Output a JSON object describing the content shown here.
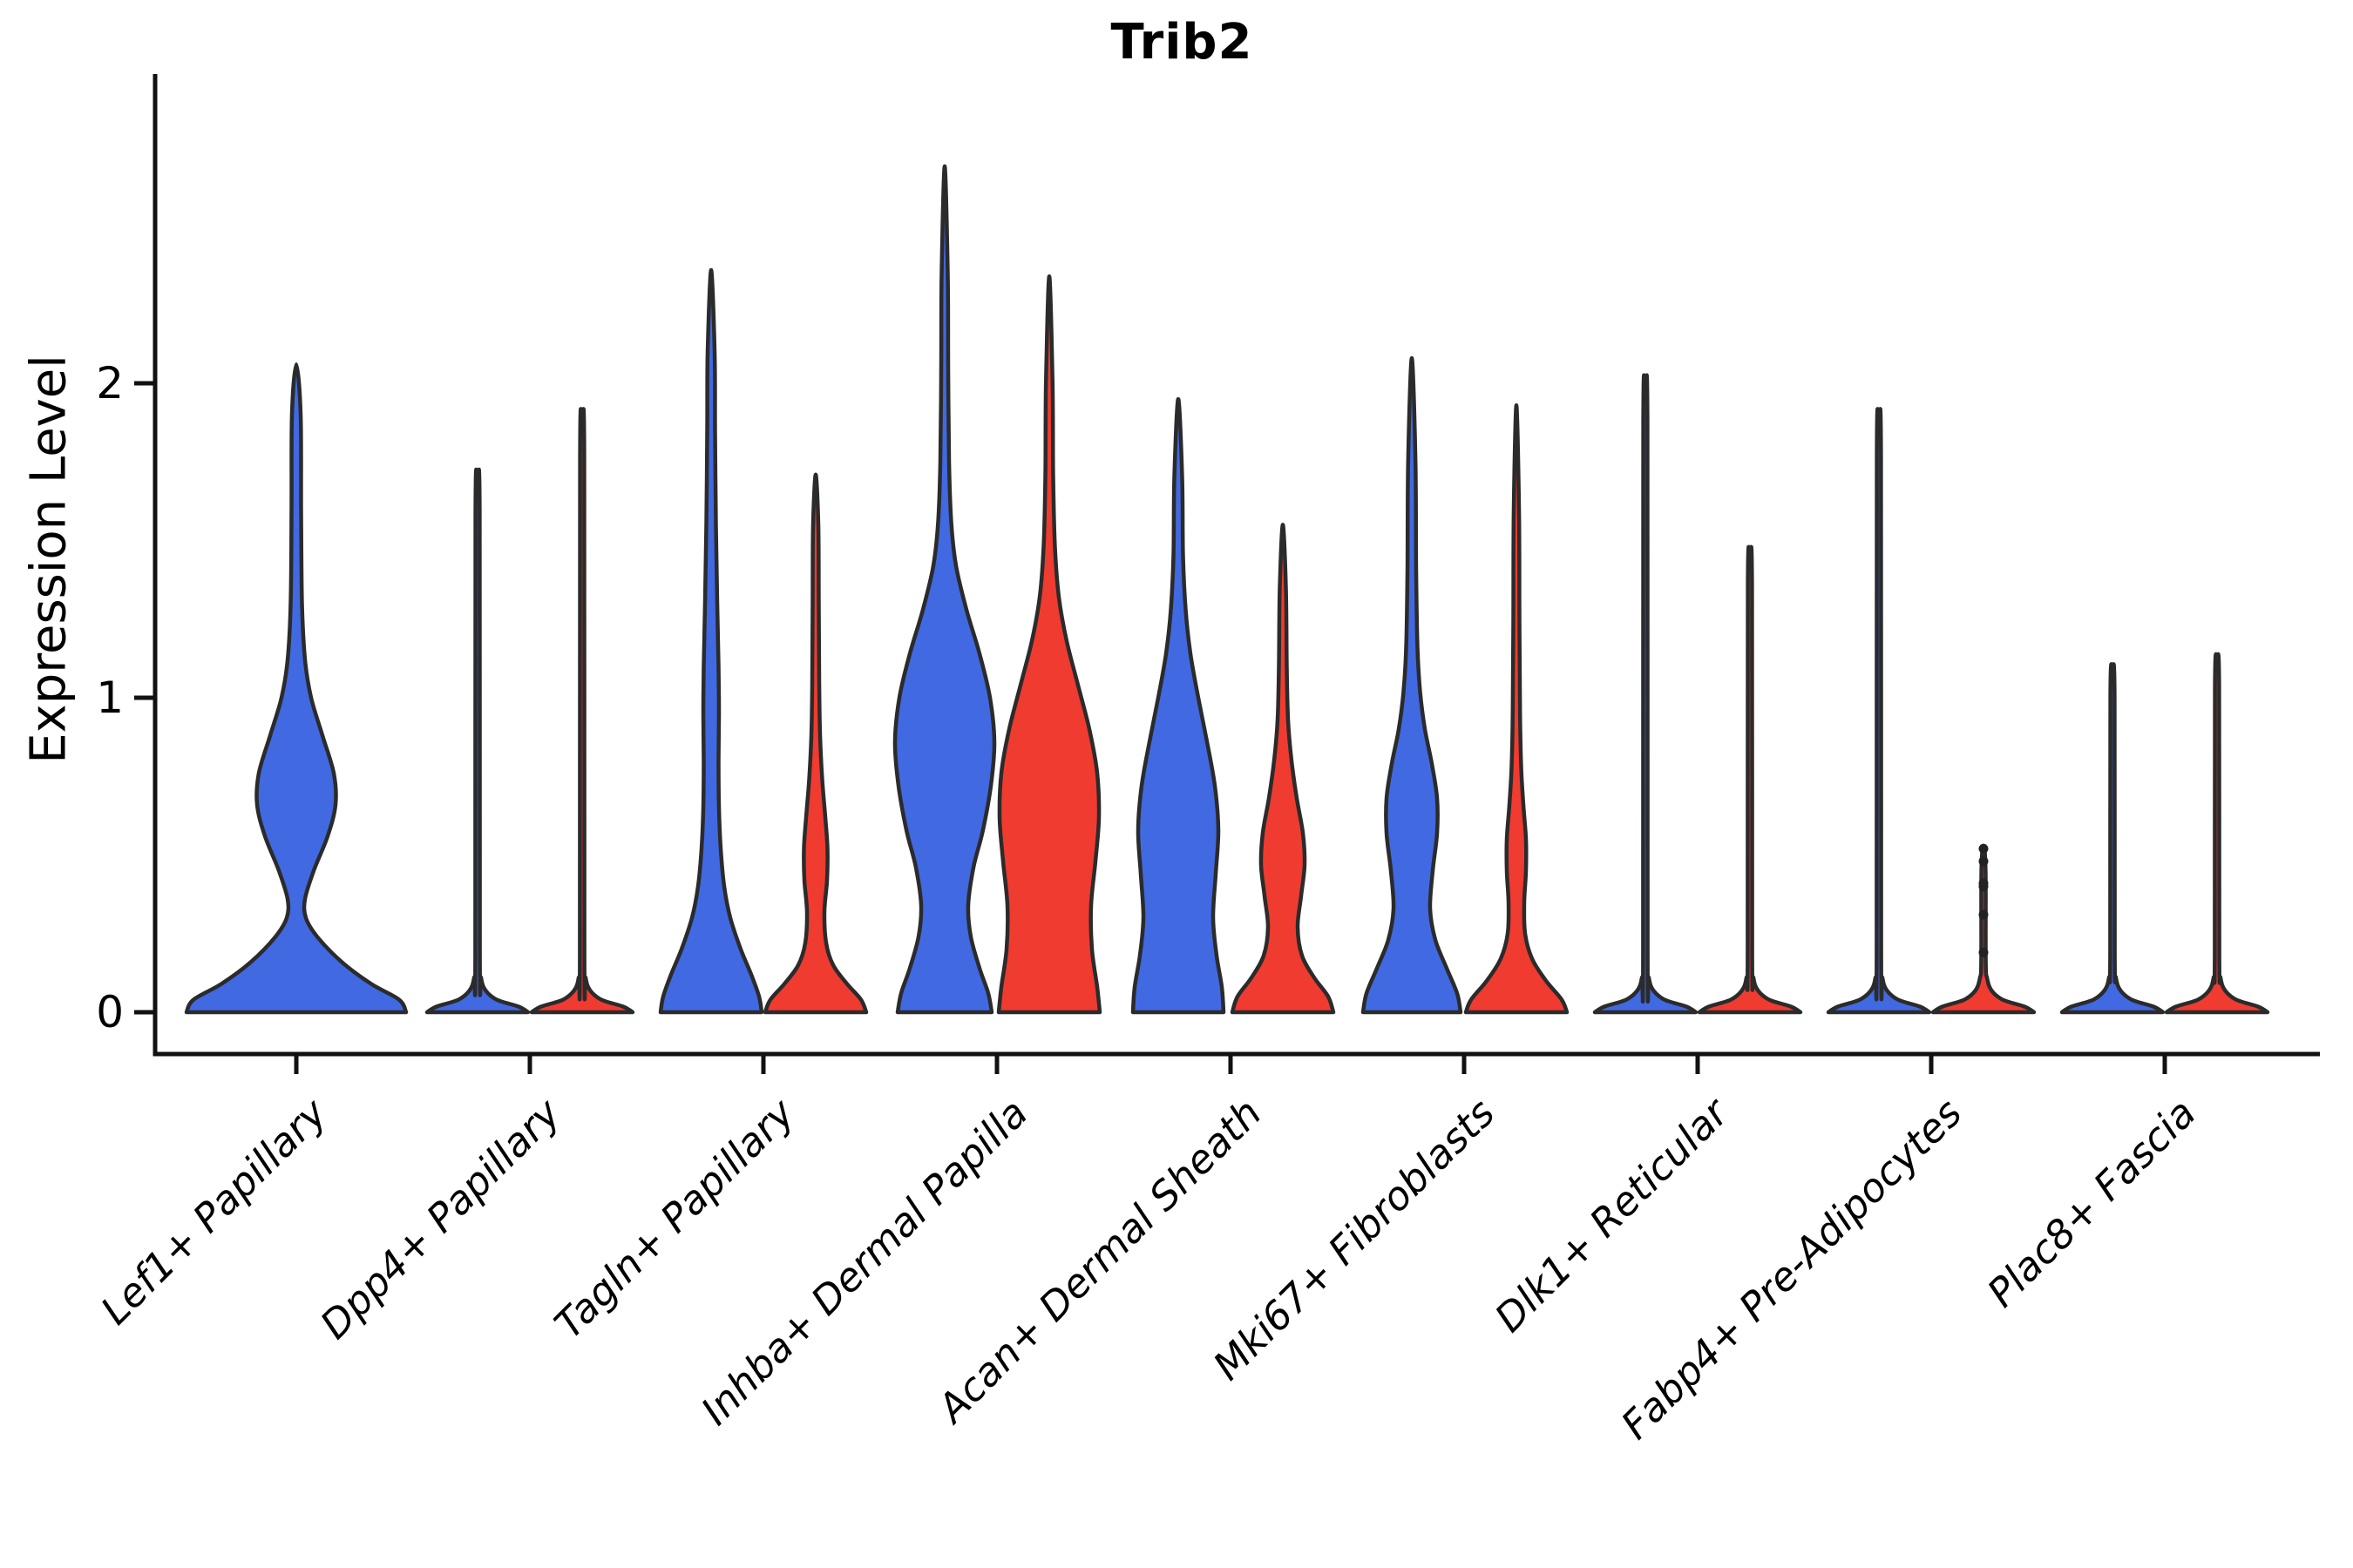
{
  "title": "Trib2",
  "ylabel": "Expression Level",
  "y_ticks": {
    "values": [
      0,
      1,
      2
    ],
    "labels": [
      "0",
      "1",
      "2"
    ]
  },
  "categories": [
    "Lef1+ Papillary",
    "Dpp4+ Papillary",
    "Tagln+ Papillary",
    "Inhba+ Dermal Papilla",
    "Acan+ Dermal Sheath",
    "Mki67+ Fibroblasts",
    "Dlk1+ Reticular",
    "Fabp4+ Pre-Adipocytes",
    "Plac8+ Fascia"
  ],
  "colors": {
    "blue": "#4169E1",
    "red": "#F03B30",
    "outline": "#2B2B2B",
    "axis": "#111111",
    "text": "#000000",
    "point": "#222222"
  },
  "chart_data": {
    "type": "violin",
    "title": "Trib2",
    "xlabel": "",
    "ylabel": "Expression Level",
    "ylim": [
      -0.13,
      2.98
    ],
    "yticks": [
      0,
      1,
      2
    ],
    "grid": false,
    "legend": "none",
    "categories": [
      "Lef1+ Papillary",
      "Dpp4+ Papillary",
      "Tagln+ Papillary",
      "Inhba+ Dermal Papilla",
      "Acan+ Dermal Sheath",
      "Mki67+ Fibroblasts",
      "Dlk1+ Reticular",
      "Fabp4+ Pre-Adipocytes",
      "Plac8+ Fascia"
    ],
    "series": [
      {
        "name": "blue",
        "max_expression": [
          2.06,
          1.67,
          2.36,
          2.69,
          1.95,
          2.08,
          1.95,
          1.85,
          1.09
        ]
      },
      {
        "name": "red",
        "max_expression": [
          null,
          1.85,
          1.71,
          2.34,
          1.55,
          1.93,
          1.44,
          0.53,
          1.12
        ]
      }
    ],
    "violins": [
      {
        "category": "Lef1+ Papillary",
        "condition": "blue",
        "span": "full",
        "max_expression": 2.06,
        "profile": [
          [
            0,
            126
          ],
          [
            0.04,
            118
          ],
          [
            0.09,
            86
          ],
          [
            0.16,
            52
          ],
          [
            0.24,
            24
          ],
          [
            0.3,
            11
          ],
          [
            0.36,
            10
          ],
          [
            0.45,
            20
          ],
          [
            0.56,
            36
          ],
          [
            0.66,
            45
          ],
          [
            0.76,
            43
          ],
          [
            0.88,
            30
          ],
          [
            1.0,
            17
          ],
          [
            1.12,
            10
          ],
          [
            1.3,
            6.5
          ],
          [
            1.6,
            5.5
          ],
          [
            1.9,
            5
          ],
          [
            2.06,
            0
          ]
        ]
      },
      {
        "category": "Dpp4+ Papillary",
        "condition": "blue",
        "max_expression": 1.67,
        "profile": [
          [
            0,
            58
          ],
          [
            0.018,
            47
          ],
          [
            0.04,
            22
          ],
          [
            0.07,
            9
          ],
          [
            0.11,
            4
          ],
          [
            0.18,
            2.6
          ],
          [
            1.59,
            2.4
          ],
          [
            1.67,
            0
          ]
        ]
      },
      {
        "category": "Dpp4+ Papillary",
        "condition": "red",
        "max_expression": 1.85,
        "profile": [
          [
            0,
            58
          ],
          [
            0.018,
            47
          ],
          [
            0.04,
            22
          ],
          [
            0.07,
            9
          ],
          [
            0.11,
            4
          ],
          [
            0.18,
            2.6
          ],
          [
            1.77,
            2.4
          ],
          [
            1.85,
            0
          ]
        ]
      },
      {
        "category": "Tagln+ Papillary",
        "condition": "blue",
        "max_expression": 2.36,
        "profile": [
          [
            0,
            58
          ],
          [
            0.05,
            55
          ],
          [
            0.12,
            46
          ],
          [
            0.2,
            34
          ],
          [
            0.3,
            22
          ],
          [
            0.4,
            15
          ],
          [
            0.52,
            11
          ],
          [
            0.65,
            9
          ],
          [
            0.8,
            8.5
          ],
          [
            0.95,
            9
          ],
          [
            1.1,
            8.5
          ],
          [
            1.3,
            7
          ],
          [
            1.55,
            5.5
          ],
          [
            1.85,
            4.5
          ],
          [
            2.1,
            4
          ],
          [
            2.36,
            0
          ]
        ]
      },
      {
        "category": "Tagln+ Papillary",
        "condition": "red",
        "max_expression": 1.71,
        "profile": [
          [
            0,
            58
          ],
          [
            0.04,
            52
          ],
          [
            0.09,
            36
          ],
          [
            0.15,
            20
          ],
          [
            0.22,
            12
          ],
          [
            0.32,
            10
          ],
          [
            0.42,
            13
          ],
          [
            0.52,
            13.5
          ],
          [
            0.62,
            11
          ],
          [
            0.74,
            7.5
          ],
          [
            0.88,
            5
          ],
          [
            1.05,
            4
          ],
          [
            1.3,
            3.5
          ],
          [
            1.55,
            3
          ],
          [
            1.71,
            0
          ]
        ]
      },
      {
        "category": "Inhba+ Dermal Papilla",
        "condition": "blue",
        "max_expression": 2.69,
        "profile": [
          [
            0,
            54
          ],
          [
            0.06,
            50
          ],
          [
            0.14,
            40
          ],
          [
            0.24,
            30
          ],
          [
            0.34,
            27
          ],
          [
            0.46,
            33
          ],
          [
            0.58,
            44
          ],
          [
            0.72,
            53
          ],
          [
            0.86,
            57
          ],
          [
            1.0,
            52
          ],
          [
            1.14,
            40
          ],
          [
            1.28,
            25
          ],
          [
            1.42,
            13
          ],
          [
            1.56,
            7.5
          ],
          [
            1.75,
            5
          ],
          [
            2.05,
            4
          ],
          [
            2.35,
            3.5
          ],
          [
            2.69,
            0
          ]
        ]
      },
      {
        "category": "Inhba+ Dermal Papilla",
        "condition": "red",
        "max_expression": 2.34,
        "profile": [
          [
            0,
            58
          ],
          [
            0.08,
            55
          ],
          [
            0.2,
            49
          ],
          [
            0.34,
            48
          ],
          [
            0.48,
            53
          ],
          [
            0.62,
            57
          ],
          [
            0.76,
            55
          ],
          [
            0.9,
            46
          ],
          [
            1.04,
            33
          ],
          [
            1.18,
            20
          ],
          [
            1.32,
            11
          ],
          [
            1.48,
            6.5
          ],
          [
            1.7,
            4.5
          ],
          [
            2.0,
            3.8
          ],
          [
            2.34,
            0
          ]
        ]
      },
      {
        "category": "Acan+ Dermal Sheath",
        "condition": "blue",
        "max_expression": 1.95,
        "profile": [
          [
            0,
            52
          ],
          [
            0.08,
            50
          ],
          [
            0.18,
            44
          ],
          [
            0.3,
            40
          ],
          [
            0.44,
            43
          ],
          [
            0.58,
            46
          ],
          [
            0.72,
            42
          ],
          [
            0.86,
            33
          ],
          [
            1.0,
            23
          ],
          [
            1.14,
            14
          ],
          [
            1.28,
            8.5
          ],
          [
            1.45,
            5.5
          ],
          [
            1.7,
            4.5
          ],
          [
            1.95,
            0
          ]
        ]
      },
      {
        "category": "Acan+ Dermal Sheath",
        "condition": "red",
        "max_expression": 1.55,
        "profile": [
          [
            0,
            58
          ],
          [
            0.05,
            52
          ],
          [
            0.11,
            36
          ],
          [
            0.18,
            22
          ],
          [
            0.27,
            17
          ],
          [
            0.37,
            21
          ],
          [
            0.47,
            25
          ],
          [
            0.57,
            23
          ],
          [
            0.68,
            16
          ],
          [
            0.8,
            10
          ],
          [
            0.93,
            6
          ],
          [
            1.1,
            4.5
          ],
          [
            1.35,
            3.5
          ],
          [
            1.55,
            0
          ]
        ]
      },
      {
        "category": "Mki67+ Fibroblasts",
        "condition": "blue",
        "max_expression": 2.08,
        "profile": [
          [
            0,
            56
          ],
          [
            0.06,
            52
          ],
          [
            0.14,
            40
          ],
          [
            0.23,
            27
          ],
          [
            0.33,
            21
          ],
          [
            0.45,
            24
          ],
          [
            0.57,
            29
          ],
          [
            0.68,
            29
          ],
          [
            0.79,
            23
          ],
          [
            0.9,
            15
          ],
          [
            1.02,
            9.5
          ],
          [
            1.16,
            6.5
          ],
          [
            1.4,
            5
          ],
          [
            1.75,
            4.2
          ],
          [
            2.08,
            0
          ]
        ]
      },
      {
        "category": "Mki67+ Fibroblasts",
        "condition": "red",
        "max_expression": 1.93,
        "profile": [
          [
            0,
            58
          ],
          [
            0.04,
            52
          ],
          [
            0.1,
            34
          ],
          [
            0.17,
            18
          ],
          [
            0.25,
            10
          ],
          [
            0.35,
            9
          ],
          [
            0.45,
            11
          ],
          [
            0.55,
            11
          ],
          [
            0.66,
            8
          ],
          [
            0.78,
            5.5
          ],
          [
            0.95,
            4.2
          ],
          [
            1.25,
            3.5
          ],
          [
            1.6,
            3
          ],
          [
            1.93,
            0
          ]
        ]
      },
      {
        "category": "Dlk1+ Reticular",
        "condition": "blue",
        "max_expression": 1.95,
        "profile": [
          [
            0,
            58
          ],
          [
            0.018,
            47
          ],
          [
            0.04,
            22
          ],
          [
            0.07,
            9
          ],
          [
            0.11,
            4
          ],
          [
            0.18,
            2.6
          ],
          [
            1.87,
            2.4
          ],
          [
            1.95,
            0
          ]
        ]
      },
      {
        "category": "Dlk1+ Reticular",
        "condition": "red",
        "max_expression": 1.44,
        "profile": [
          [
            0,
            58
          ],
          [
            0.018,
            47
          ],
          [
            0.04,
            22
          ],
          [
            0.07,
            9
          ],
          [
            0.11,
            4
          ],
          [
            0.18,
            2.6
          ],
          [
            1.36,
            2.4
          ],
          [
            1.44,
            0
          ]
        ]
      },
      {
        "category": "Fabp4+ Pre-Adipocytes",
        "condition": "blue",
        "max_expression": 1.85,
        "profile": [
          [
            0,
            58
          ],
          [
            0.018,
            47
          ],
          [
            0.04,
            22
          ],
          [
            0.07,
            9
          ],
          [
            0.11,
            4
          ],
          [
            0.18,
            2.6
          ],
          [
            1.77,
            2.4
          ],
          [
            1.85,
            0
          ]
        ]
      },
      {
        "category": "Fabp4+ Pre-Adipocytes",
        "condition": "red",
        "max_expression": 0.53,
        "profile": [
          [
            0,
            58
          ],
          [
            0.018,
            47
          ],
          [
            0.04,
            22
          ],
          [
            0.07,
            9
          ],
          [
            0.11,
            4
          ],
          [
            0.16,
            2.6
          ],
          [
            0.45,
            2.4
          ],
          [
            0.53,
            0
          ]
        ],
        "points": [
          0.52,
          0.48,
          0.41,
          0.4,
          0.31,
          0.19
        ]
      },
      {
        "category": "Plac8+ Fascia",
        "condition": "blue",
        "max_expression": 1.09,
        "profile": [
          [
            0,
            58
          ],
          [
            0.018,
            47
          ],
          [
            0.04,
            22
          ],
          [
            0.07,
            9
          ],
          [
            0.11,
            4
          ],
          [
            0.18,
            2.6
          ],
          [
            1.01,
            2.4
          ],
          [
            1.09,
            0
          ]
        ]
      },
      {
        "category": "Plac8+ Fascia",
        "condition": "red",
        "max_expression": 1.12,
        "profile": [
          [
            0,
            58
          ],
          [
            0.018,
            47
          ],
          [
            0.04,
            22
          ],
          [
            0.07,
            9
          ],
          [
            0.11,
            4
          ],
          [
            0.18,
            2.6
          ],
          [
            1.04,
            2.4
          ],
          [
            1.12,
            0
          ]
        ]
      }
    ]
  }
}
